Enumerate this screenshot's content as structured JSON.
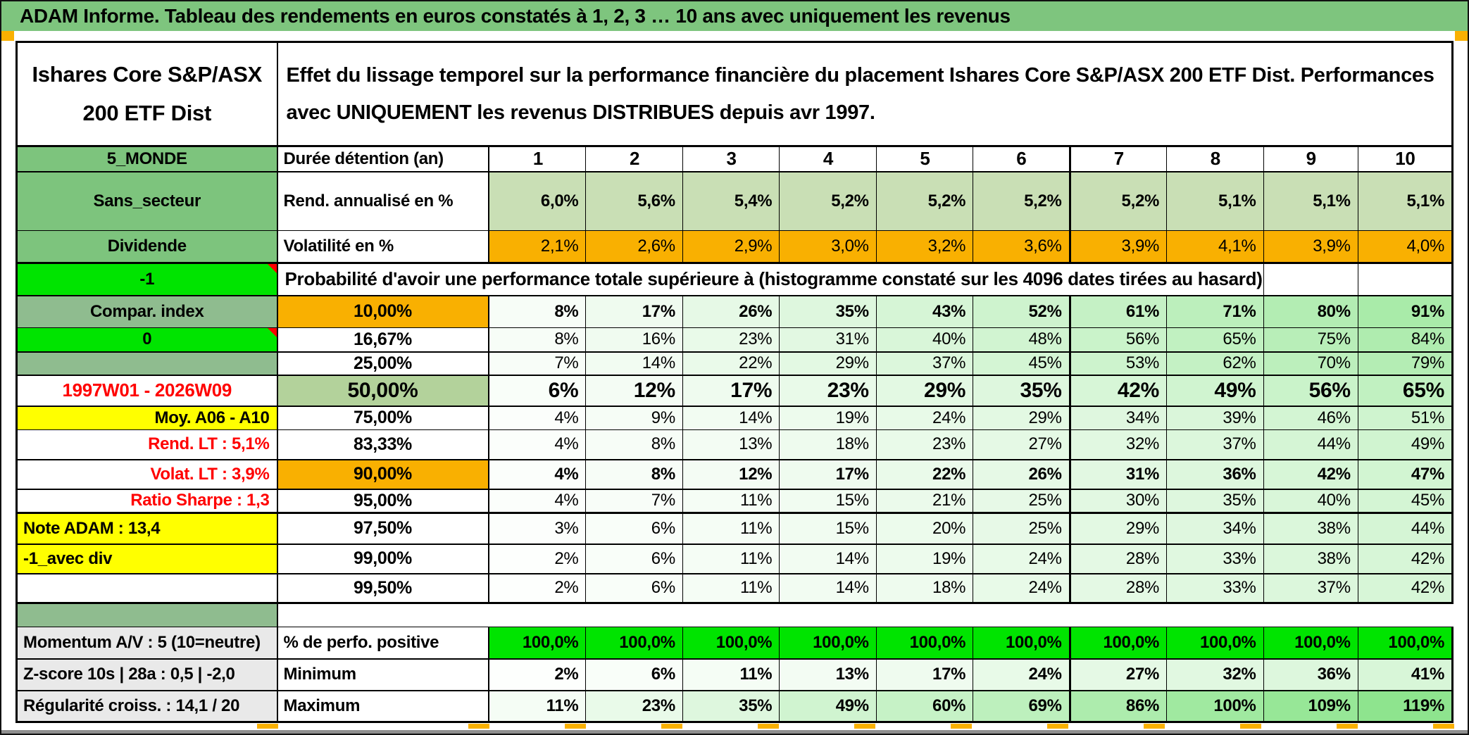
{
  "title": "ADAM Informe. Tableau des rendements en euros constatés à 1, 2, 3 … 10 ans avec uniquement les revenus",
  "header": {
    "fund_name": "Ishares Core S&P/ASX 200 ETF Dist",
    "description": "Effet du lissage temporel sur la performance financière du placement Ishares Core S&P/ASX 200 ETF Dist. Performances avec UNIQUEMENT les revenus DISTRIBUES depuis avr 1997."
  },
  "palette": {
    "title_green": "#7EC57E",
    "header_green": "#7DC47D",
    "muted_green": "#8FBC8F",
    "bright_green": "#00E400",
    "sage": "#C9DFB5",
    "sage_dark": "#B3D29B",
    "orange": "#F9B001",
    "yellow": "#FFFF00",
    "gray_label": "#E9E9E9",
    "red_text": "#FF0000",
    "gray_bar": "#8F8F8F"
  },
  "table": {
    "columns": [
      "1",
      "2",
      "3",
      "4",
      "5",
      "6",
      "7",
      "8",
      "9",
      "10"
    ],
    "rows": [
      {
        "id": "duree",
        "label": "5_MONDE",
        "label_bg": "header",
        "col2": "Durée détention (an)",
        "row_kind": "colheader",
        "values": [
          "1",
          "2",
          "3",
          "4",
          "5",
          "6",
          "7",
          "8",
          "9",
          "10"
        ]
      },
      {
        "id": "rendement",
        "label": "Sans_secteur",
        "label_bg": "header",
        "col2": "Rend. annualisé en %",
        "value_bg": "sage",
        "value_bold": true,
        "values": [
          "6,0%",
          "5,6%",
          "5,4%",
          "5,2%",
          "5,2%",
          "5,2%",
          "5,2%",
          "5,1%",
          "5,1%",
          "5,1%"
        ]
      },
      {
        "id": "volatilite",
        "label": "Dividende",
        "label_bg": "header",
        "col2": "Volatilité en %",
        "value_bg": "orange",
        "values": [
          "2,1%",
          "2,6%",
          "2,9%",
          "3,0%",
          "3,2%",
          "3,6%",
          "3,9%",
          "4,1%",
          "3,9%",
          "4,0%"
        ]
      },
      {
        "id": "probabilite",
        "label": "-1",
        "label_bg": "bright",
        "label_comment": true,
        "span_text": "Probabilité d'avoir une performance totale supérieure à (histogramme constaté sur les 4096 dates tirées au hasard)",
        "empty_tail": 2
      },
      {
        "id": "p10",
        "label": "Compar. index",
        "label_bg": "muted",
        "col2": "10,00%",
        "col2_bg": "orange",
        "col2_center": true,
        "value_scale": true,
        "value_bold": true,
        "values": [
          "8%",
          "17%",
          "26%",
          "35%",
          "43%",
          "52%",
          "61%",
          "71%",
          "80%",
          "91%"
        ]
      },
      {
        "id": "p16",
        "label": "0",
        "label_bg": "bright",
        "label_comment": true,
        "col2": "16,67%",
        "col2_center": true,
        "value_scale": true,
        "values": [
          "8%",
          "16%",
          "23%",
          "31%",
          "40%",
          "48%",
          "56%",
          "65%",
          "75%",
          "84%"
        ]
      },
      {
        "id": "p25",
        "label": "",
        "label_bg": "muted",
        "col2": "25,00%",
        "col2_center": true,
        "value_scale": true,
        "values": [
          "7%",
          "14%",
          "22%",
          "29%",
          "37%",
          "45%",
          "53%",
          "62%",
          "70%",
          "79%"
        ]
      },
      {
        "id": "p50",
        "label": "1997W01 - 2026W09",
        "label_color": "red",
        "col2": "50,00%",
        "col2_bg": "sage_dark",
        "col2_center": true,
        "value_scale": true,
        "value_bold": true,
        "big": true,
        "values": [
          "6%",
          "12%",
          "17%",
          "23%",
          "29%",
          "35%",
          "42%",
          "49%",
          "56%",
          "65%"
        ]
      },
      {
        "id": "p75",
        "label": "Moy. A06 - A10",
        "label_bg": "yellow",
        "label_align": "right",
        "col2": "75,00%",
        "col2_center": true,
        "value_scale": true,
        "values": [
          "4%",
          "9%",
          "14%",
          "19%",
          "24%",
          "29%",
          "34%",
          "39%",
          "46%",
          "51%"
        ]
      },
      {
        "id": "p83",
        "label": "Rend. LT :   5,1%",
        "label_color": "red",
        "label_align": "right",
        "col2": "83,33%",
        "col2_center": true,
        "value_scale": true,
        "values": [
          "4%",
          "8%",
          "13%",
          "18%",
          "23%",
          "27%",
          "32%",
          "37%",
          "44%",
          "49%"
        ]
      },
      {
        "id": "p90",
        "label": "Volat. LT :   3,9%",
        "label_color": "red",
        "label_align": "right",
        "col2": "90,00%",
        "col2_bg": "orange",
        "col2_center": true,
        "value_scale": true,
        "value_bold": true,
        "values": [
          "4%",
          "8%",
          "12%",
          "17%",
          "22%",
          "26%",
          "31%",
          "36%",
          "42%",
          "47%"
        ]
      },
      {
        "id": "p95",
        "label": "Ratio Sharpe :   1,3",
        "label_color": "red",
        "label_align": "right",
        "col2": "95,00%",
        "col2_center": true,
        "value_scale": true,
        "values": [
          "4%",
          "7%",
          "11%",
          "15%",
          "21%",
          "25%",
          "30%",
          "35%",
          "40%",
          "45%"
        ]
      },
      {
        "id": "p975",
        "label": "Note ADAM : 13,4",
        "label_bg": "yellow",
        "label_align": "left",
        "col2": "97,50%",
        "col2_center": true,
        "value_scale": true,
        "values": [
          "3%",
          "6%",
          "11%",
          "15%",
          "20%",
          "25%",
          "29%",
          "34%",
          "38%",
          "44%"
        ]
      },
      {
        "id": "p99",
        "label": "-1_avec div",
        "label_bg": "yellow",
        "label_align": "left",
        "col2": "99,00%",
        "col2_center": true,
        "value_scale": true,
        "values": [
          "2%",
          "6%",
          "11%",
          "14%",
          "19%",
          "24%",
          "28%",
          "33%",
          "38%",
          "42%"
        ]
      },
      {
        "id": "p995",
        "label": "",
        "col2": "99,50%",
        "col2_center": true,
        "value_scale": true,
        "values": [
          "2%",
          "6%",
          "11%",
          "14%",
          "18%",
          "24%",
          "28%",
          "33%",
          "37%",
          "42%"
        ]
      },
      {
        "id": "gap",
        "label": "",
        "label_bg": "muted",
        "row_kind": "gap"
      },
      {
        "id": "perfo",
        "label": "Momentum A/V : 5 (10=neutre)",
        "label_bg": "gray",
        "label_align": "left",
        "col2": "% de perfo. positive",
        "value_bg": "bright",
        "value_bold": true,
        "values": [
          "100,0%",
          "100,0%",
          "100,0%",
          "100,0%",
          "100,0%",
          "100,0%",
          "100,0%",
          "100,0%",
          "100,0%",
          "100,0%"
        ]
      },
      {
        "id": "minimum",
        "label": "Z-score 10s | 28a : 0,5 | -2,0",
        "label_bg": "gray",
        "label_align": "left",
        "col2": "Minimum",
        "value_scale": true,
        "value_bold": true,
        "values": [
          "2%",
          "6%",
          "11%",
          "13%",
          "17%",
          "24%",
          "27%",
          "32%",
          "36%",
          "41%"
        ]
      },
      {
        "id": "maximum",
        "label": "Régularité croiss. : 14,1 / 20",
        "label_bg": "gray",
        "label_align": "left",
        "col2": "Maximum",
        "value_scale": true,
        "value_bold": true,
        "values": [
          "11%",
          "23%",
          "35%",
          "49%",
          "60%",
          "69%",
          "86%",
          "100%",
          "109%",
          "119%"
        ]
      }
    ]
  }
}
